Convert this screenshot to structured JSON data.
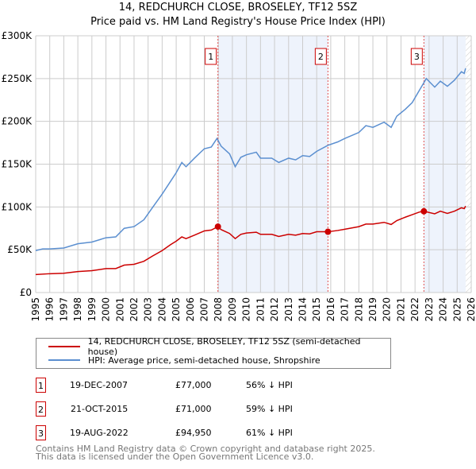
{
  "title": "14, REDCHURCH CLOSE, BROSELEY, TF12 5SZ",
  "subtitle": "Price paid vs. HM Land Registry's House Price Index (HPI)",
  "chart_data": {
    "type": "line",
    "title": "14, REDCHURCH CLOSE, BROSELEY, TF12 5SZ",
    "ylim": [
      0,
      300000
    ],
    "xlim": [
      1995,
      2026
    ],
    "yticks": [
      {
        "v": 0,
        "l": "£0"
      },
      {
        "v": 50000,
        "l": "£50K"
      },
      {
        "v": 100000,
        "l": "£100K"
      },
      {
        "v": 150000,
        "l": "£150K"
      },
      {
        "v": 200000,
        "l": "£200K"
      },
      {
        "v": 250000,
        "l": "£250K"
      },
      {
        "v": 300000,
        "l": "£300K"
      }
    ],
    "xticks": [
      "1995",
      "1996",
      "1997",
      "1998",
      "1999",
      "2000",
      "2001",
      "2002",
      "2003",
      "2004",
      "2005",
      "2006",
      "2007",
      "2008",
      "2009",
      "2010",
      "2011",
      "2012",
      "2013",
      "2014",
      "2015",
      "2016",
      "2017",
      "2018",
      "2019",
      "2020",
      "2021",
      "2022",
      "2023",
      "2024",
      "2025",
      "2026"
    ],
    "series": [
      {
        "name": "HPI: Average price, semi-detached house, Shropshire",
        "color": "#5b8fd0",
        "x": [
          1995,
          1995.5,
          1996,
          1997,
          1998,
          1999,
          2000,
          2000.7,
          2001.3,
          2002,
          2002.7,
          2003.3,
          2004,
          2004.6,
          2005,
          2005.4,
          2005.7,
          2006.3,
          2007,
          2007.5,
          2007.9,
          2008.2,
          2008.8,
          2009.2,
          2009.6,
          2010,
          2010.7,
          2011,
          2011.8,
          2012.3,
          2013,
          2013.5,
          2014,
          2014.5,
          2015,
          2015.8,
          2016.5,
          2017,
          2018,
          2018.5,
          2019,
          2019.8,
          2020.3,
          2020.7,
          2021.3,
          2021.8,
          2022.3,
          2022.8,
          2023.4,
          2023.8,
          2024.3,
          2024.8,
          2025.3,
          2025.5,
          2025.6
        ],
        "y": [
          49000,
          51000,
          51000,
          52000,
          57000,
          59000,
          64000,
          65000,
          75000,
          77000,
          85000,
          99000,
          115000,
          130000,
          140000,
          152000,
          147000,
          157000,
          168000,
          170000,
          180000,
          171000,
          162000,
          147000,
          158000,
          161000,
          164000,
          157000,
          157000,
          152000,
          157000,
          155000,
          160000,
          159000,
          165000,
          172000,
          176000,
          180000,
          187000,
          195000,
          193000,
          199000,
          193000,
          206000,
          214000,
          222000,
          236000,
          250000,
          240000,
          247000,
          241000,
          248000,
          258000,
          256000,
          262000
        ]
      },
      {
        "name": "14, REDCHURCH CLOSE, BROSELEY, TF12 5SZ (semi-detached house)",
        "color": "#cc0000",
        "x": [
          1995,
          1996,
          1997,
          1998,
          1999,
          2000,
          2000.7,
          2001.3,
          2002,
          2002.7,
          2003.3,
          2004,
          2004.6,
          2005,
          2005.4,
          2005.7,
          2006.3,
          2007,
          2007.5,
          2007.97,
          2008.2,
          2008.8,
          2009.2,
          2009.6,
          2010,
          2010.7,
          2011,
          2011.8,
          2012.3,
          2013,
          2013.5,
          2014,
          2014.5,
          2015,
          2015.8,
          2016.5,
          2017,
          2018,
          2018.5,
          2019,
          2019.8,
          2020.3,
          2020.7,
          2021.3,
          2021.8,
          2022.3,
          2022.63,
          2023.4,
          2023.8,
          2024.3,
          2024.8,
          2025.3,
          2025.5,
          2025.6
        ],
        "y": [
          21000,
          22000,
          22500,
          24500,
          25500,
          28000,
          28000,
          32000,
          33000,
          36500,
          42500,
          49000,
          56000,
          60000,
          65000,
          63000,
          67000,
          72000,
          73000,
          77000,
          73500,
          69000,
          63000,
          68000,
          69500,
          70500,
          68000,
          68000,
          65500,
          68000,
          67000,
          69000,
          68500,
          71000,
          71000,
          72500,
          74000,
          77000,
          80000,
          80000,
          82000,
          79500,
          84000,
          88000,
          91000,
          94000,
          94950,
          92000,
          95000,
          92500,
          95000,
          99000,
          98000,
          101000
        ]
      }
    ],
    "sales": [
      {
        "n": "1",
        "x": 2007.97,
        "date": "19-DEC-2007",
        "price": "£77,000",
        "value": 77000,
        "hpi": "56% ↓ HPI"
      },
      {
        "n": "2",
        "x": 2015.8,
        "date": "21-OCT-2015",
        "price": "£71,000",
        "value": 71000,
        "hpi": "59% ↓ HPI"
      },
      {
        "n": "3",
        "x": 2022.63,
        "date": "19-AUG-2022",
        "price": "£94,950",
        "value": 94950,
        "hpi": "61% ↓ HPI"
      }
    ],
    "shaded": [
      [
        2007.97,
        2015.8
      ],
      [
        2022.63,
        2025.6
      ]
    ],
    "data_end": 2025.6
  },
  "footer": [
    "Contains HM Land Registry data © Crown copyright and database right 2025.",
    "This data is licensed under the Open Government Licence v3.0."
  ]
}
